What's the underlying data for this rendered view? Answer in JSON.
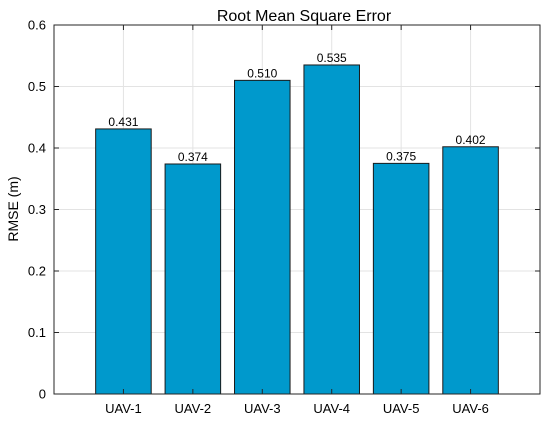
{
  "chart_data": {
    "type": "bar",
    "title": "Root Mean Square Error",
    "xlabel": "",
    "ylabel": "RMSE (m)",
    "categories": [
      "UAV-1",
      "UAV-2",
      "UAV-3",
      "UAV-4",
      "UAV-5",
      "UAV-6"
    ],
    "values": [
      0.431,
      0.374,
      0.51,
      0.535,
      0.375,
      0.402
    ],
    "data_labels": [
      "0.431",
      "0.374",
      "0.510",
      "0.535",
      "0.375",
      "0.402"
    ],
    "ylim": [
      0,
      0.6
    ],
    "yticks": [
      0,
      0.1,
      0.2,
      0.3,
      0.4,
      0.5,
      0.6
    ],
    "ytick_labels": [
      "0",
      "0.1",
      "0.2",
      "0.3",
      "0.4",
      "0.5",
      "0.6"
    ],
    "grid": true,
    "legend": "none",
    "colors": {
      "bar_fill": "#0099CC",
      "bar_stroke": "#1a1a1a",
      "grid": "#e3e3e3",
      "axis": "#262626",
      "text": "#000000"
    }
  }
}
